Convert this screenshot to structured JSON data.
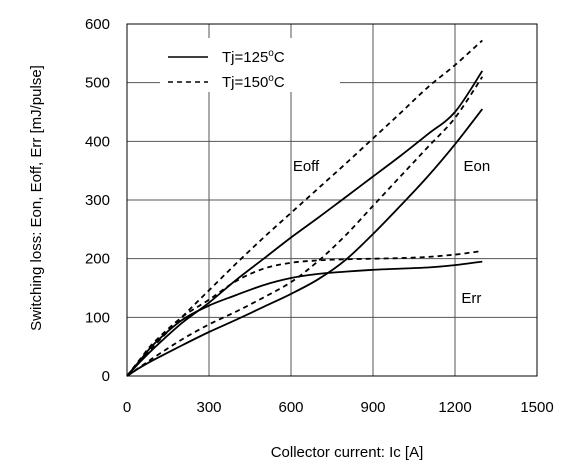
{
  "chart_data": {
    "type": "line",
    "xlabel": "Collector current: Ic [A]",
    "ylabel": "Switching loss: Eon, Eoff, Err [mJ/pulse]",
    "xlim": [
      0,
      1500
    ],
    "ylim": [
      0,
      600
    ],
    "xticks": [
      0,
      300,
      600,
      900,
      1200,
      1500
    ],
    "yticks": [
      0,
      100,
      200,
      300,
      400,
      500,
      600
    ],
    "grid": true,
    "legend": {
      "placement": "top-left",
      "entries": [
        {
          "label": "Tj=125",
          "deg": "o",
          "unit": "C",
          "style": "solid"
        },
        {
          "label": "Tj=150",
          "deg": "o",
          "unit": "C",
          "style": "dashed"
        }
      ]
    },
    "annotations": [
      {
        "text": "Eoff",
        "x": 655,
        "y": 358
      },
      {
        "text": "Eon",
        "x": 1280,
        "y": 358
      },
      {
        "text": "Err",
        "x": 1260,
        "y": 133
      }
    ],
    "series": [
      {
        "curve": "Eoff",
        "style": "solid",
        "x": [
          0,
          50,
          100,
          200,
          300,
          400,
          500,
          600,
          700,
          800,
          900,
          1000,
          1100,
          1200,
          1300
        ],
        "y": [
          0,
          25,
          48,
          90,
          125,
          164,
          200,
          236,
          270,
          305,
          340,
          375,
          412,
          450,
          520
        ]
      },
      {
        "curve": "Eoff",
        "style": "dashed",
        "x": [
          0,
          50,
          100,
          200,
          300,
          400,
          500,
          600,
          700,
          800,
          900,
          1000,
          1100,
          1200,
          1300
        ],
        "y": [
          0,
          28,
          52,
          100,
          146,
          192,
          236,
          278,
          320,
          362,
          405,
          448,
          492,
          530,
          572
        ]
      },
      {
        "curve": "Eon",
        "style": "solid",
        "x": [
          0,
          50,
          100,
          200,
          300,
          400,
          500,
          600,
          700,
          800,
          900,
          1000,
          1100,
          1200,
          1300
        ],
        "y": [
          0,
          15,
          28,
          52,
          75,
          96,
          118,
          140,
          165,
          198,
          242,
          290,
          340,
          395,
          455
        ]
      },
      {
        "curve": "Eon",
        "style": "dashed",
        "x": [
          0,
          50,
          100,
          200,
          300,
          400,
          500,
          600,
          700,
          800,
          900,
          1000,
          1100,
          1200,
          1300
        ],
        "y": [
          0,
          16,
          32,
          62,
          88,
          110,
          134,
          160,
          196,
          240,
          290,
          340,
          390,
          440,
          510
        ]
      },
      {
        "curve": "Err",
        "style": "solid",
        "x": [
          0,
          50,
          100,
          200,
          300,
          400,
          500,
          600,
          700,
          800,
          900,
          1000,
          1100,
          1200,
          1300
        ],
        "y": [
          0,
          28,
          55,
          95,
          120,
          138,
          155,
          167,
          174,
          178,
          181,
          183,
          185,
          189,
          195
        ]
      },
      {
        "curve": "Err",
        "style": "dashed",
        "x": [
          0,
          50,
          100,
          200,
          300,
          400,
          500,
          600,
          700,
          800,
          900,
          1000,
          1100,
          1200,
          1300
        ],
        "y": [
          0,
          30,
          58,
          100,
          130,
          162,
          183,
          193,
          197,
          199,
          200,
          201,
          203,
          207,
          213
        ]
      }
    ]
  }
}
